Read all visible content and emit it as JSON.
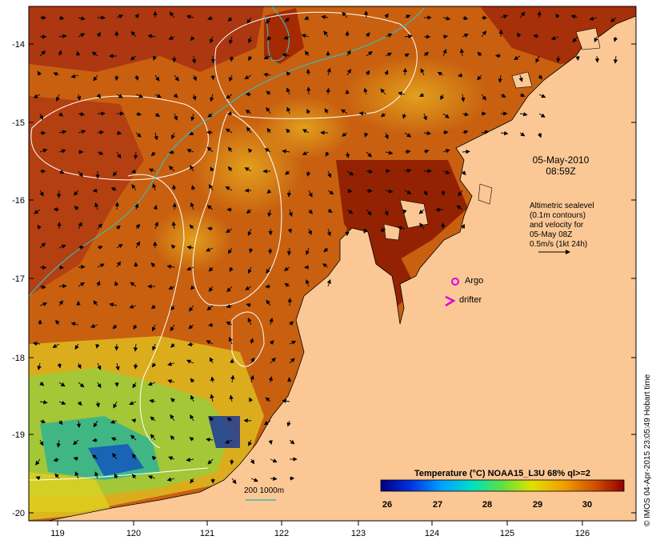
{
  "map": {
    "date": "05-May-2010",
    "time": "08:59Z",
    "legend_lines": [
      "Altimetric sealevel",
      "(0.1m contours)",
      "and velocity for",
      "05-May 08Z",
      "0.5m/s (1kt 24h)"
    ],
    "argo_label": "Argo",
    "drifter_label": "drifter",
    "isobath_label": "200  1000m",
    "credit": "© IMOS 04-Apr-2015 23:05:49 Hobart time",
    "lon_ticks": [
      "119",
      "120",
      "121",
      "122",
      "123",
      "124",
      "125",
      "126"
    ],
    "lat_ticks": [
      "-14",
      "-15",
      "-16",
      "-17",
      "-18",
      "-19",
      "-20"
    ],
    "colorbar": {
      "title": "Temperature (°C) NOAA15_L3U 68% ql>=2",
      "ticks": [
        "26",
        "27",
        "28",
        "29",
        "30"
      ]
    },
    "colors": {
      "land": "#fbc895",
      "argo": "#e000e0",
      "isobath": "#40b8b0",
      "contour": "#ffffff"
    }
  }
}
